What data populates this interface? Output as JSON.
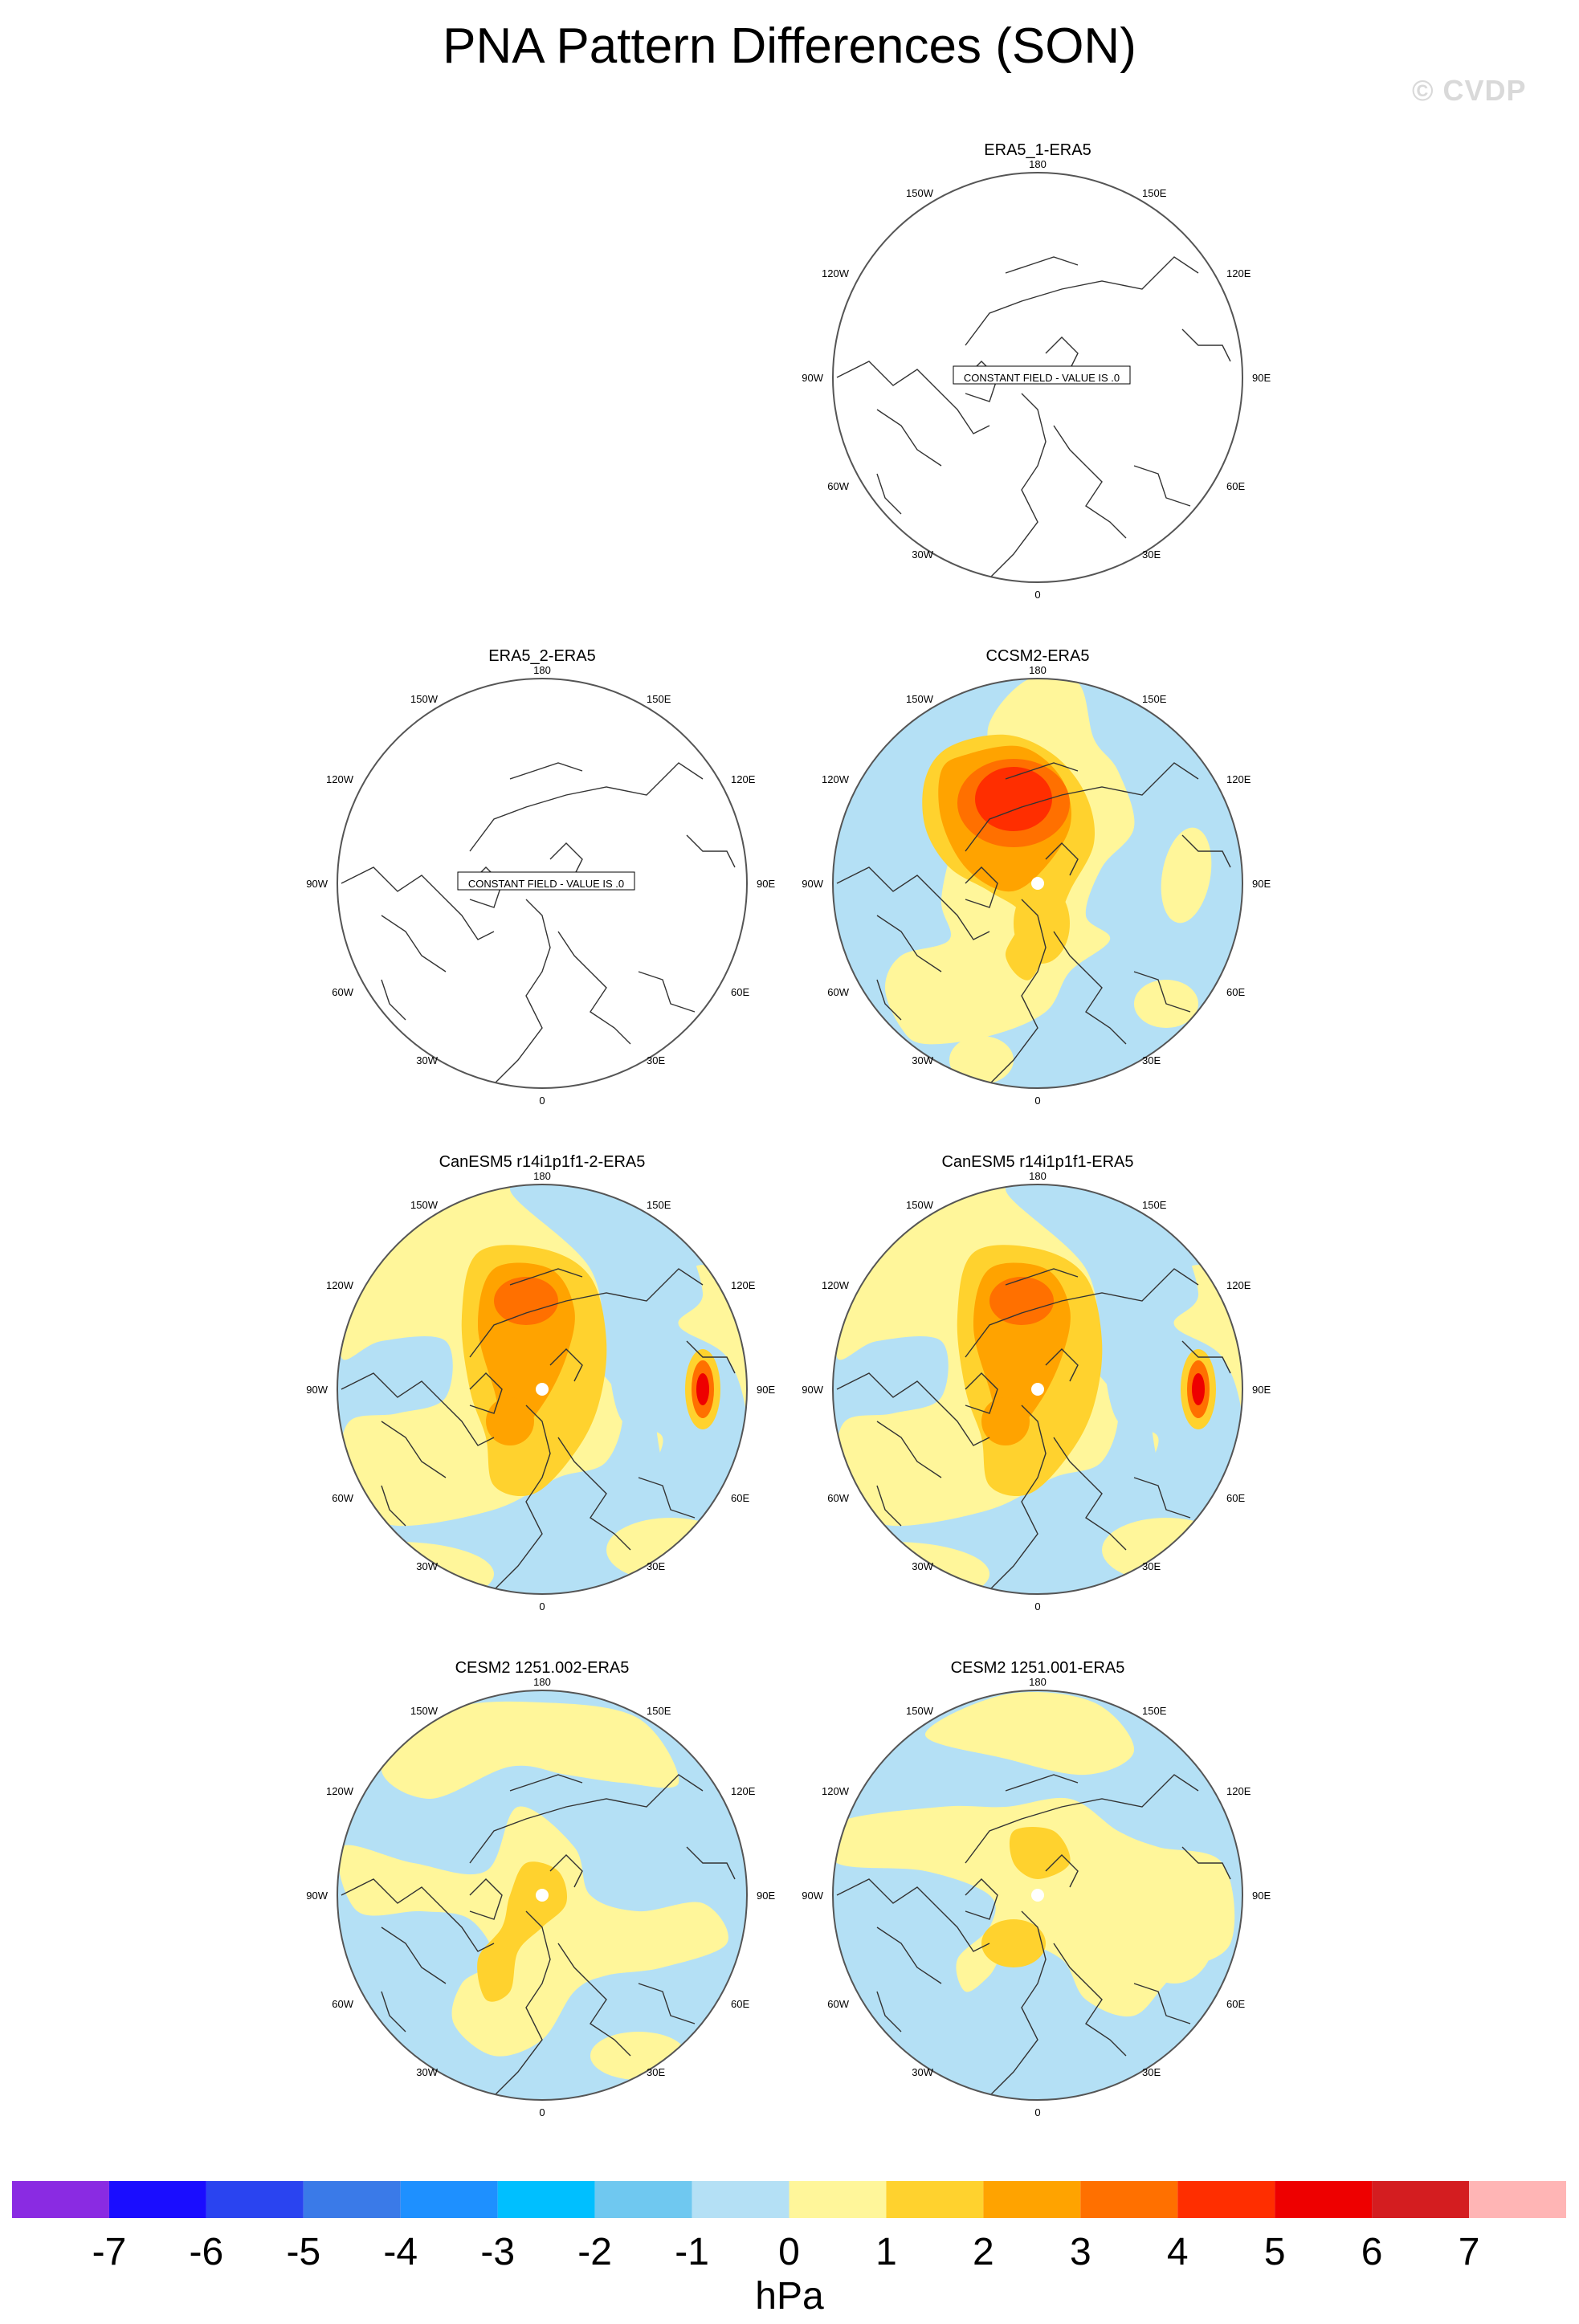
{
  "title": "PNA Pattern Differences (SON)",
  "watermark": "© CVDP",
  "unit": "hPa",
  "colors": {
    "levels": [
      -7,
      -6,
      -5,
      -4,
      -3,
      -2,
      -1,
      0,
      1,
      2,
      3,
      4,
      5,
      6,
      7
    ],
    "fills": [
      "#8a2be2",
      "#1a0dff",
      "#2a44f0",
      "#3a7ae8",
      "#1e90ff",
      "#00bfff",
      "#6fc8f0",
      "#b4e0f5",
      "#fff69a",
      "#ffd22e",
      "#ffa300",
      "#ff7000",
      "#ff2e00",
      "#ee0000",
      "#d41d20",
      "#ffb5b5"
    ]
  },
  "constant_field_label": "CONSTANT FIELD - VALUE IS .0",
  "lon_labels": {
    "top": "180",
    "bottom": "0",
    "left": "90W",
    "right": "90E",
    "ul_outer": "150W",
    "ul_inner": "120W",
    "ur_outer": "150E",
    "ur_inner": "120E",
    "ll_inner": "60W",
    "ll_outer": "30W",
    "lr_inner": "60E",
    "lr_outer": "30E"
  },
  "panels": [
    {
      "id": "p1",
      "title": "ERA5_1-ERA5",
      "constant": true,
      "pattern": "none"
    },
    {
      "id": "p2",
      "title": "ERA5_2-ERA5",
      "constant": true,
      "pattern": "none"
    },
    {
      "id": "p3",
      "title": "CCSM2-ERA5",
      "constant": false,
      "pattern": "ccsm2"
    },
    {
      "id": "p4",
      "title": "CanESM5 r14i1p1f1-2-ERA5",
      "constant": false,
      "pattern": "canesm"
    },
    {
      "id": "p5",
      "title": "CanESM5 r14i1p1f1-ERA5",
      "constant": false,
      "pattern": "canesm"
    },
    {
      "id": "p6",
      "title": "CESM2 1251.002-ERA5",
      "constant": false,
      "pattern": "cesm2a"
    },
    {
      "id": "p7",
      "title": "CESM2 1251.001-ERA5",
      "constant": false,
      "pattern": "cesm2b"
    }
  ]
}
